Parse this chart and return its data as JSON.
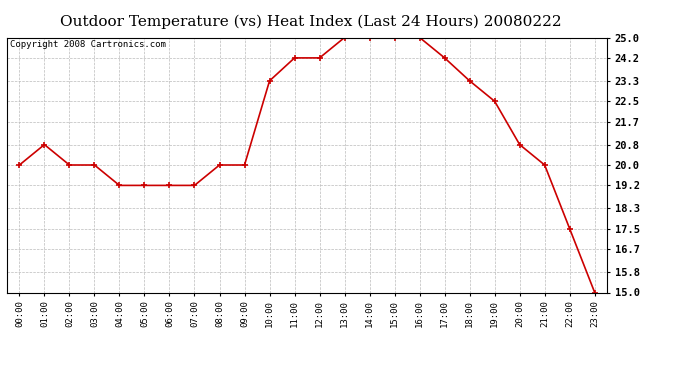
{
  "title": "Outdoor Temperature (vs) Heat Index (Last 24 Hours) 20080222",
  "copyright_text": "Copyright 2008 Cartronics.com",
  "x_labels": [
    "00:00",
    "01:00",
    "02:00",
    "03:00",
    "04:00",
    "05:00",
    "06:00",
    "07:00",
    "08:00",
    "09:00",
    "10:00",
    "11:00",
    "12:00",
    "13:00",
    "14:00",
    "15:00",
    "16:00",
    "17:00",
    "18:00",
    "19:00",
    "20:00",
    "21:00",
    "22:00",
    "23:00"
  ],
  "y_values": [
    20.0,
    20.8,
    20.0,
    20.0,
    19.2,
    19.2,
    19.2,
    19.2,
    20.0,
    20.0,
    23.3,
    24.2,
    24.2,
    25.0,
    25.0,
    25.0,
    25.0,
    24.2,
    23.3,
    22.5,
    20.8,
    20.0,
    17.5,
    15.0
  ],
  "y_min": 15.0,
  "y_max": 25.0,
  "y_ticks": [
    15.0,
    15.8,
    16.7,
    17.5,
    18.3,
    19.2,
    20.0,
    20.8,
    21.7,
    22.5,
    23.3,
    24.2,
    25.0
  ],
  "line_color": "#cc0000",
  "marker_color": "#cc0000",
  "bg_color": "#ffffff",
  "plot_bg_color": "#ffffff",
  "grid_color": "#bbbbbb",
  "title_fontsize": 11,
  "copyright_fontsize": 6.5
}
